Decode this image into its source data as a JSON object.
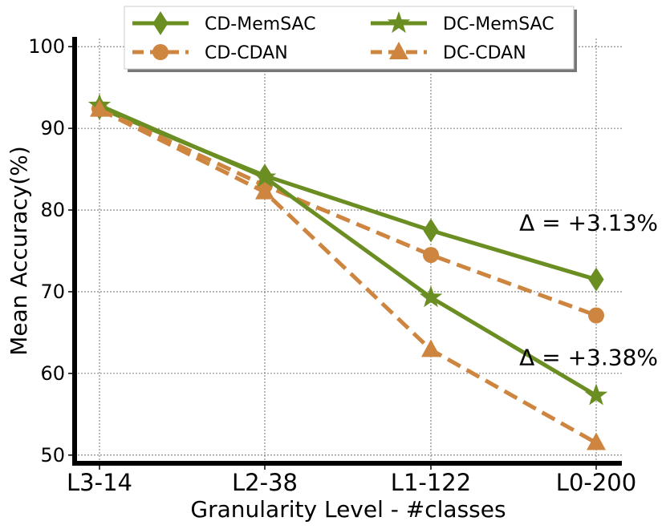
{
  "chart_data": {
    "type": "line",
    "categories": [
      "L3-14",
      "L2-38",
      "L1-122",
      "L0-200"
    ],
    "xlabel": "Granularity Level - #classes",
    "ylabel": "Mean Accuracy(%)",
    "ylim": [
      49,
      101
    ],
    "yticks": [
      50,
      60,
      70,
      80,
      90,
      100
    ],
    "grid": true,
    "legend": "top-center",
    "series": [
      {
        "name": "CD-MemSAC",
        "values": [
          92.5,
          84.2,
          77.5,
          71.5
        ],
        "color": "#6b8e23",
        "dash": "solid",
        "marker": "diamond"
      },
      {
        "name": "CD-CDAN",
        "values": [
          92.4,
          83.0,
          74.5,
          67.1
        ],
        "color": "#cd853f",
        "dash": "dashed",
        "marker": "circle"
      },
      {
        "name": "DC-MemSAC",
        "values": [
          92.8,
          84.0,
          69.3,
          57.3
        ],
        "color": "#6b8e23",
        "dash": "solid",
        "marker": "star"
      },
      {
        "name": "DC-CDAN",
        "values": [
          92.3,
          82.2,
          62.9,
          51.5
        ],
        "color": "#cd853f",
        "dash": "dashed",
        "marker": "triangle"
      }
    ],
    "annotations": [
      {
        "text": "Δ = +3.13%",
        "category": "L0-200",
        "y": 78.5
      },
      {
        "text": "Δ = +3.38%",
        "category": "L0-200",
        "y": 62.0
      }
    ]
  }
}
